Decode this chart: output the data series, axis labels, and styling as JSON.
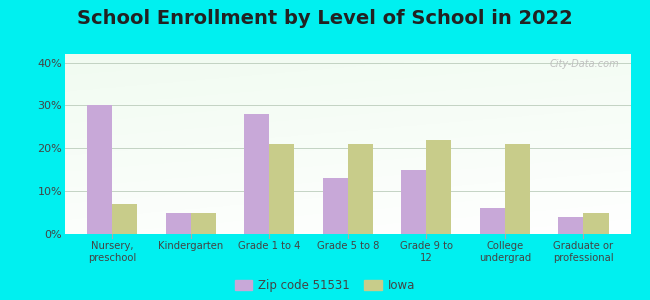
{
  "title": "School Enrollment by Level of School in 2022",
  "categories": [
    "Nursery,\npreschool",
    "Kindergarten",
    "Grade 1 to 4",
    "Grade 5 to 8",
    "Grade 9 to\n12",
    "College\nundergrad",
    "Graduate or\nprofessional"
  ],
  "zip_values": [
    30,
    5,
    28,
    13,
    15,
    6,
    4
  ],
  "iowa_values": [
    7,
    5,
    21,
    21,
    22,
    21,
    5
  ],
  "zip_color": "#c8a8d8",
  "iowa_color": "#c8cc8a",
  "background_outer": "#00f0f0",
  "ylim": [
    0,
    42
  ],
  "yticks": [
    0,
    10,
    20,
    30,
    40
  ],
  "ytick_labels": [
    "0%",
    "10%",
    "20%",
    "30%",
    "40%"
  ],
  "title_fontsize": 14,
  "legend_label_zip": "Zip code 51531",
  "legend_label_iowa": "Iowa",
  "watermark": "City-Data.com",
  "bar_width": 0.32,
  "grid_color": "#bbccbb"
}
